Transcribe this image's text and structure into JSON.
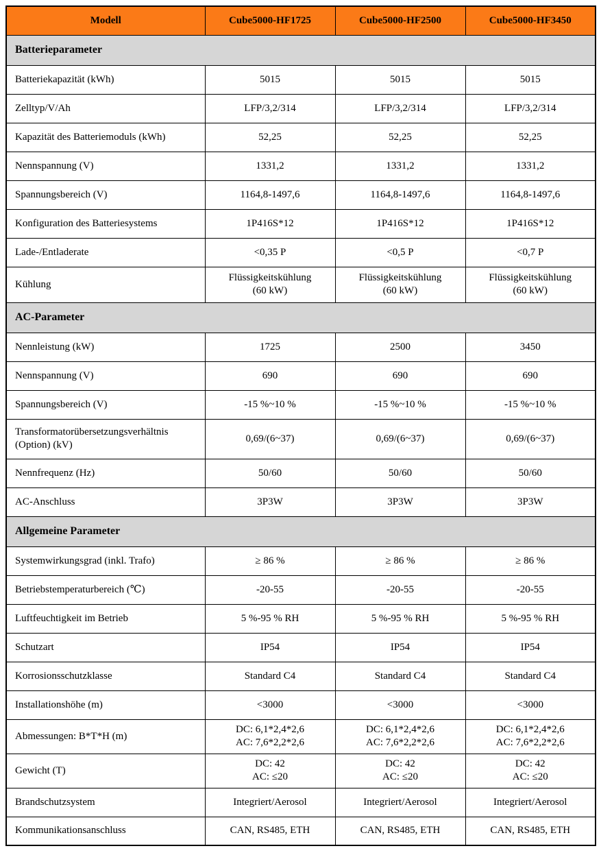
{
  "colors": {
    "header_bg": "#FB7A17",
    "section_bg": "#D6D6D6",
    "border": "#000000",
    "text": "#000000"
  },
  "table": {
    "header": {
      "model_label": "Modell",
      "models": [
        "Cube5000-HF1725",
        "Cube5000-HF2500",
        "Cube5000-HF3450"
      ]
    },
    "sections": [
      {
        "title": "Batterieparameter",
        "rows": [
          {
            "label": "Batteriekapazität (kWh)",
            "values": [
              "5015",
              "5015",
              "5015"
            ]
          },
          {
            "label": "Zelltyp/V/Ah",
            "values": [
              "LFP/3,2/314",
              "LFP/3,2/314",
              "LFP/3,2/314"
            ]
          },
          {
            "label": "Kapazität des Batteriemoduls (kWh)",
            "values": [
              "52,25",
              "52,25",
              "52,25"
            ]
          },
          {
            "label": "Nennspannung (V)",
            "values": [
              "1331,2",
              "1331,2",
              "1331,2"
            ]
          },
          {
            "label": "Spannungsbereich (V)",
            "values": [
              "1164,8-1497,6",
              "1164,8-1497,6",
              "1164,8-1497,6"
            ]
          },
          {
            "label": "Konfiguration des Batteriesystems",
            "values": [
              "1P416S*12",
              "1P416S*12",
              "1P416S*12"
            ]
          },
          {
            "label": "Lade-/Entladerate",
            "values": [
              "<0,35 P",
              "<0,5 P",
              "<0,7 P"
            ]
          },
          {
            "label": "Kühlung",
            "values": [
              "Flüssigkeitskühlung\n(60 kW)",
              "Flüssigkeitskühlung\n(60 kW)",
              "Flüssigkeitskühlung\n(60 kW)"
            ]
          }
        ]
      },
      {
        "title": "AC-Parameter",
        "rows": [
          {
            "label": "Nennleistung (kW)",
            "values": [
              "1725",
              "2500",
              "3450"
            ]
          },
          {
            "label": "Nennspannung (V)",
            "values": [
              "690",
              "690",
              "690"
            ]
          },
          {
            "label": "Spannungsbereich (V)",
            "values": [
              "-15 %~10 %",
              "-15 %~10 %",
              "-15 %~10 %"
            ]
          },
          {
            "label": "Transformatorübersetzungsverhältnis (Option) (kV)",
            "values": [
              "0,69/(6~37)",
              "0,69/(6~37)",
              "0,69/(6~37)"
            ]
          },
          {
            "label": "Nennfrequenz (Hz)",
            "values": [
              "50/60",
              "50/60",
              "50/60"
            ]
          },
          {
            "label": "AC-Anschluss",
            "values": [
              "3P3W",
              "3P3W",
              "3P3W"
            ]
          }
        ]
      },
      {
        "title": "Allgemeine Parameter",
        "rows": [
          {
            "label": "Systemwirkungsgrad (inkl. Trafo)",
            "values": [
              "≥ 86 %",
              "≥ 86 %",
              "≥ 86 %"
            ]
          },
          {
            "label": "Betriebstemperaturbereich (℃)",
            "values": [
              "-20-55",
              "-20-55",
              "-20-55"
            ]
          },
          {
            "label": "Luftfeuchtigkeit im Betrieb",
            "values": [
              "5 %-95 % RH",
              "5 %-95 % RH",
              "5 %-95 % RH"
            ]
          },
          {
            "label": "Schutzart",
            "values": [
              "IP54",
              "IP54",
              "IP54"
            ]
          },
          {
            "label": "Korrosionsschutzklasse",
            "values": [
              "Standard C4",
              "Standard C4",
              "Standard C4"
            ]
          },
          {
            "label": "Installationshöhe (m)",
            "values": [
              "<3000",
              "<3000",
              "<3000"
            ]
          },
          {
            "label": "Abmessungen: B*T*H (m)",
            "values": [
              "DC: 6,1*2,4*2,6\nAC: 7,6*2,2*2,6",
              "DC: 6,1*2,4*2,6\nAC: 7,6*2,2*2,6",
              "DC: 6,1*2,4*2,6\nAC: 7,6*2,2*2,6"
            ]
          },
          {
            "label": "Gewicht (T)",
            "values": [
              "DC: 42\nAC: ≤20",
              "DC: 42\nAC: ≤20",
              "DC: 42\nAC: ≤20"
            ]
          },
          {
            "label": "Brandschutzsystem",
            "values": [
              "Integriert/Aerosol",
              "Integriert/Aerosol",
              "Integriert/Aerosol"
            ]
          },
          {
            "label": "Kommunikationsanschluss",
            "values": [
              "CAN, RS485, ETH",
              "CAN, RS485, ETH",
              "CAN, RS485, ETH"
            ]
          }
        ]
      }
    ]
  }
}
